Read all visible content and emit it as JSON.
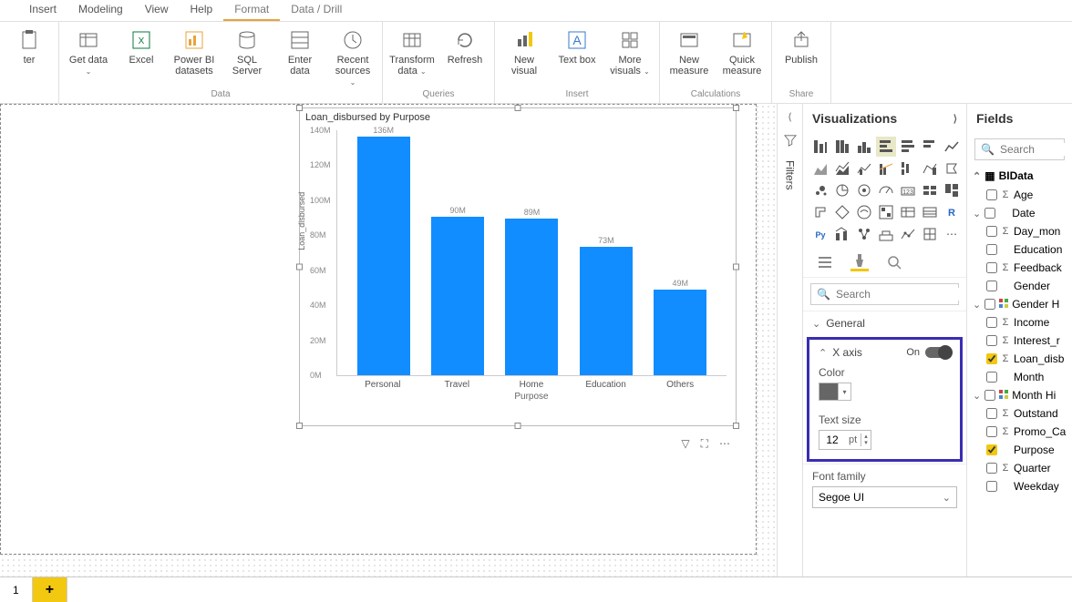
{
  "menu": {
    "tabs": [
      "Insert",
      "Modeling",
      "View",
      "Help",
      "Format",
      "Data / Drill"
    ],
    "active_index": 4
  },
  "ribbon": {
    "groups": [
      {
        "label": "",
        "items": [
          {
            "label": "ter",
            "icon": "paste"
          }
        ]
      },
      {
        "label": "Data",
        "items": [
          {
            "label": "Get data",
            "icon": "getdata",
            "chev": true
          },
          {
            "label": "Excel",
            "icon": "excel"
          },
          {
            "label": "Power BI datasets",
            "icon": "pbids"
          },
          {
            "label": "SQL Server",
            "icon": "sql"
          },
          {
            "label": "Enter data",
            "icon": "enterdata"
          },
          {
            "label": "Recent sources",
            "icon": "recent",
            "chev": true
          }
        ]
      },
      {
        "label": "Queries",
        "items": [
          {
            "label": "Transform data",
            "icon": "transform",
            "chev": true
          },
          {
            "label": "Refresh",
            "icon": "refresh"
          }
        ]
      },
      {
        "label": "Insert",
        "items": [
          {
            "label": "New visual",
            "icon": "newvisual"
          },
          {
            "label": "Text box",
            "icon": "textbox"
          },
          {
            "label": "More visuals",
            "icon": "morevisuals",
            "chev": true
          }
        ]
      },
      {
        "label": "Calculations",
        "items": [
          {
            "label": "New measure",
            "icon": "newmeasure"
          },
          {
            "label": "Quick measure",
            "icon": "quickmeasure"
          }
        ]
      },
      {
        "label": "Share",
        "items": [
          {
            "label": "Publish",
            "icon": "publish"
          }
        ]
      }
    ]
  },
  "chart": {
    "title": "Loan_disbursed by Purpose",
    "type": "bar",
    "y_axis_label": "Loan_disbursed",
    "x_axis_label": "Purpose",
    "categories": [
      "Personal",
      "Travel",
      "Home",
      "Education",
      "Others"
    ],
    "values": [
      136,
      90,
      89,
      73,
      49
    ],
    "value_labels": [
      "136M",
      "90M",
      "89M",
      "73M",
      "49M"
    ],
    "bar_color": "#118dff",
    "ymax": 140,
    "yticks": [
      0,
      20,
      40,
      60,
      80,
      100,
      120,
      140
    ],
    "ytick_labels": [
      "0M",
      "20M",
      "40M",
      "60M",
      "80M",
      "100M",
      "120M",
      "140M"
    ]
  },
  "viz_pane": {
    "title": "Visualizations",
    "search_placeholder": "Search",
    "sections": {
      "general": {
        "label": "General"
      },
      "xaxis": {
        "label": "X axis",
        "on_label": "On",
        "color_label": "Color",
        "color_value": "#666666",
        "text_size_label": "Text size",
        "text_size_value": "12",
        "text_size_unit": "pt",
        "font_family_label": "Font family",
        "font_family_value": "Segoe UI"
      }
    }
  },
  "fields_pane": {
    "title": "Fields",
    "search_placeholder": "Search",
    "table": "BIData",
    "fields": [
      {
        "name": "Age",
        "sigma": true,
        "checked": false
      },
      {
        "name": "Date",
        "sigma": false,
        "checked": false,
        "expandable": true
      },
      {
        "name": "Day_mon",
        "sigma": true,
        "checked": false,
        "indent": true
      },
      {
        "name": "Education",
        "sigma": false,
        "checked": false
      },
      {
        "name": "Feedback",
        "sigma": true,
        "checked": false
      },
      {
        "name": "Gender",
        "sigma": false,
        "checked": false
      },
      {
        "name": "Gender H",
        "sigma": false,
        "checked": false,
        "hier": true,
        "expandable": true
      },
      {
        "name": "Income",
        "sigma": true,
        "checked": false
      },
      {
        "name": "Interest_r",
        "sigma": true,
        "checked": false
      },
      {
        "name": "Loan_disb",
        "sigma": true,
        "checked": true
      },
      {
        "name": "Month",
        "sigma": false,
        "checked": false
      },
      {
        "name": "Month Hi",
        "sigma": false,
        "checked": false,
        "hier": true,
        "expandable": true
      },
      {
        "name": "Outstand",
        "sigma": true,
        "checked": false
      },
      {
        "name": "Promo_Ca",
        "sigma": true,
        "checked": false
      },
      {
        "name": "Purpose",
        "sigma": false,
        "checked": true
      },
      {
        "name": "Quarter",
        "sigma": true,
        "checked": false
      },
      {
        "name": "Weekday",
        "sigma": false,
        "checked": false
      }
    ]
  },
  "filters_label": "Filters",
  "page_tabs": {
    "pages": [
      "1"
    ],
    "add": "+"
  }
}
